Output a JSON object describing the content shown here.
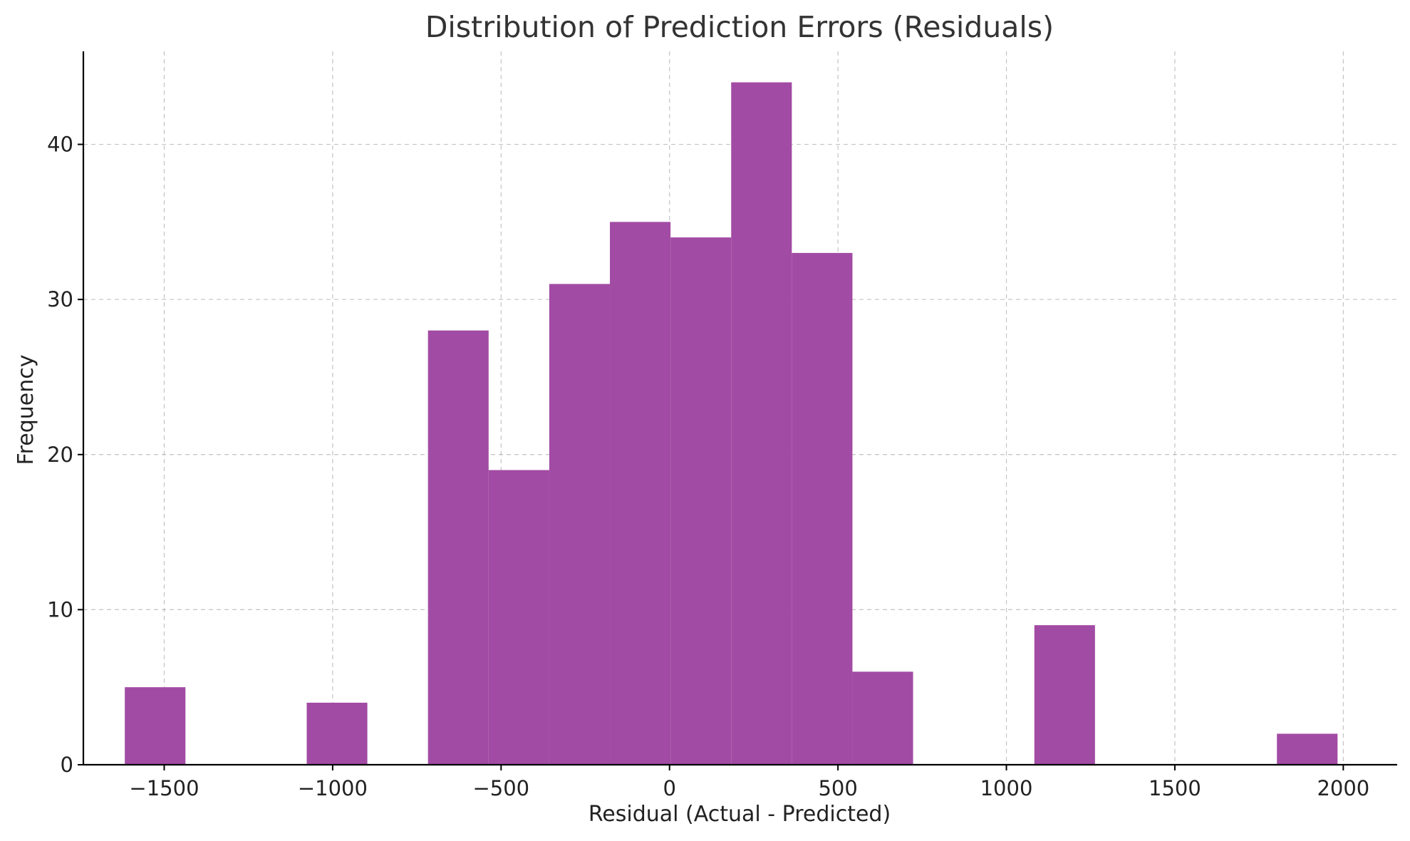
{
  "chart_data": {
    "type": "bar",
    "title": "Distribution of Prediction Errors (Residuals)",
    "xlabel": "Residual (Actual - Predicted)",
    "ylabel": "Frequency",
    "xlim": [
      -1740,
      2160
    ],
    "ylim": [
      0,
      46
    ],
    "xticks": [
      -1500,
      -1000,
      -500,
      0,
      500,
      1000,
      1500,
      2000
    ],
    "xtick_labels": [
      "−1500",
      "−1000",
      "−500",
      "0",
      "500",
      "1000",
      "1500",
      "2000"
    ],
    "yticks": [
      0,
      10,
      20,
      30,
      40
    ],
    "ytick_labels": [
      "0",
      "10",
      "20",
      "30",
      "40"
    ],
    "grid": true,
    "bar_color": "#a24ba4",
    "bins": [
      {
        "x0": -1617,
        "x1": -1437,
        "count": 5
      },
      {
        "x0": -1077,
        "x1": -897,
        "count": 4
      },
      {
        "x0": -717,
        "x1": -537,
        "count": 28
      },
      {
        "x0": -537,
        "x1": -357,
        "count": 19
      },
      {
        "x0": -357,
        "x1": -177,
        "count": 31
      },
      {
        "x0": -177,
        "x1": 3,
        "count": 35
      },
      {
        "x0": 3,
        "x1": 183,
        "count": 34
      },
      {
        "x0": 183,
        "x1": 363,
        "count": 44
      },
      {
        "x0": 363,
        "x1": 543,
        "count": 33
      },
      {
        "x0": 543,
        "x1": 723,
        "count": 6
      },
      {
        "x0": 1083,
        "x1": 1263,
        "count": 9
      },
      {
        "x0": 1803,
        "x1": 1983,
        "count": 2
      }
    ]
  }
}
